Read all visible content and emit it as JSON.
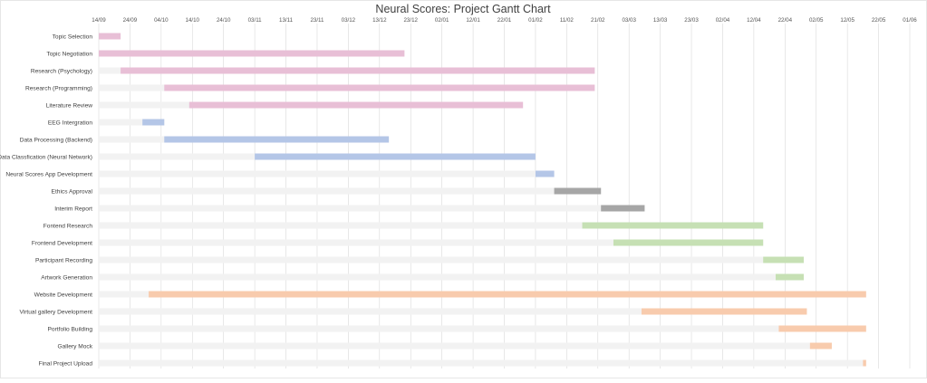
{
  "chart_data": {
    "type": "gantt",
    "title": "Neural Scores: Project Gantt Chart",
    "x_axis": {
      "type": "date",
      "min": "2021-09-14",
      "max": "2022-06-01",
      "ticks": [
        "2021-09-14",
        "2021-09-24",
        "2021-10-04",
        "2021-10-14",
        "2021-10-24",
        "2021-11-03",
        "2021-11-13",
        "2021-11-23",
        "2021-12-03",
        "2021-12-13",
        "2021-12-23",
        "2022-01-02",
        "2022-01-12",
        "2022-01-22",
        "2022-02-01",
        "2022-02-11",
        "2022-02-21",
        "2022-03-03",
        "2022-03-13",
        "2022-03-23",
        "2022-04-02",
        "2022-04-12",
        "2022-04-22",
        "2022-05-02",
        "2022-05-12",
        "2022-05-22",
        "2022-06-01"
      ],
      "tick_labels": [
        "14/09",
        "24/09",
        "04/10",
        "14/10",
        "24/10",
        "03/11",
        "13/11",
        "23/11",
        "03/12",
        "13/12",
        "23/12",
        "02/01",
        "12/01",
        "22/01",
        "01/02",
        "11/02",
        "21/02",
        "03/03",
        "13/03",
        "23/03",
        "02/04",
        "12/04",
        "22/04",
        "02/05",
        "12/05",
        "22/05",
        "01/06"
      ],
      "grid": true,
      "position": "top"
    },
    "background_bar_color": "#f2f2f2",
    "tasks": [
      {
        "name": "Topic Selection",
        "start": "2021-09-14",
        "end": "2021-09-21",
        "color": "#e8bfd6"
      },
      {
        "name": "Topic Negotiation",
        "start": "2021-09-14",
        "end": "2021-12-21",
        "color": "#e8bfd6"
      },
      {
        "name": "Research (Psychology)",
        "start": "2021-09-21",
        "end": "2022-02-20",
        "color": "#e8bfd6"
      },
      {
        "name": "Research (Programming)",
        "start": "2021-10-05",
        "end": "2022-02-20",
        "color": "#e8bfd6"
      },
      {
        "name": "Literature Review",
        "start": "2021-10-13",
        "end": "2022-01-28",
        "color": "#e8bfd6"
      },
      {
        "name": "EEG Intergration",
        "start": "2021-09-28",
        "end": "2021-10-05",
        "color": "#b4c6e7"
      },
      {
        "name": "Data Processing (Backend)",
        "start": "2021-10-05",
        "end": "2021-12-16",
        "color": "#b4c6e7"
      },
      {
        "name": "Data Classfication (Neural Network)",
        "start": "2021-11-03",
        "end": "2022-02-01",
        "color": "#b4c6e7"
      },
      {
        "name": "Neural Scores App Development",
        "start": "2022-02-01",
        "end": "2022-02-07",
        "color": "#b4c6e7"
      },
      {
        "name": "Ethics Approval",
        "start": "2022-02-07",
        "end": "2022-02-22",
        "color": "#a6a6a6"
      },
      {
        "name": "Interim Report",
        "start": "2022-02-22",
        "end": "2022-03-08",
        "color": "#a6a6a6"
      },
      {
        "name": "Fontend Research",
        "start": "2022-02-16",
        "end": "2022-04-15",
        "color": "#c6e0b4"
      },
      {
        "name": "Frontend Development",
        "start": "2022-02-26",
        "end": "2022-04-15",
        "color": "#c6e0b4"
      },
      {
        "name": "Participant Recording",
        "start": "2022-04-15",
        "end": "2022-04-28",
        "color": "#c6e0b4"
      },
      {
        "name": "Artwork Generation",
        "start": "2022-04-19",
        "end": "2022-04-28",
        "color": "#c6e0b4"
      },
      {
        "name": "Website Development",
        "start": "2021-09-30",
        "end": "2022-05-18",
        "color": "#f8cbad"
      },
      {
        "name": "Virtual gallery Development",
        "start": "2022-03-07",
        "end": "2022-04-29",
        "color": "#f8cbad"
      },
      {
        "name": "Portfolio Building",
        "start": "2022-04-20",
        "end": "2022-05-18",
        "color": "#f8cbad"
      },
      {
        "name": "Gallery Mock",
        "start": "2022-04-30",
        "end": "2022-05-07",
        "color": "#f8cbad"
      },
      {
        "name": "Final Project Upload",
        "start": "2022-05-17",
        "end": "2022-05-18",
        "color": "#f8cbad"
      }
    ]
  }
}
